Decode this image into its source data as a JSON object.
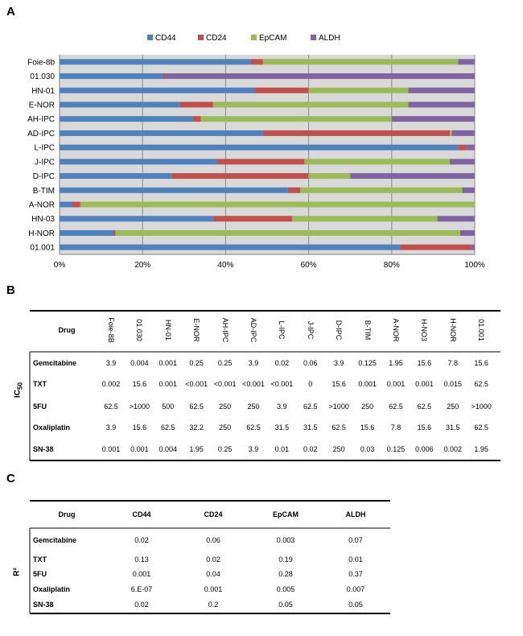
{
  "panels": {
    "a": "A",
    "b": "B",
    "c": "C"
  },
  "chart_data": {
    "type": "bar",
    "orientation": "horizontal",
    "stacked": "percent",
    "categories": [
      "Foie-8b",
      "01.030",
      "HN-01",
      "E-NOR",
      "AH-IPC",
      "AD-IPC",
      "L-IPC",
      "J-IPC",
      "D-IPC",
      "B-TIM",
      "A-NOR",
      "HN-03",
      "H-NOR",
      "01.001"
    ],
    "series": [
      {
        "name": "CD44",
        "color": "#4f81bd",
        "values": [
          46,
          25,
          47,
          29,
          32,
          49,
          96,
          38,
          27,
          55,
          3,
          37,
          13,
          82
        ]
      },
      {
        "name": "CD24",
        "color": "#c0504d",
        "values": [
          3,
          0.5,
          13,
          8,
          2,
          45,
          2,
          21,
          33,
          3,
          2,
          19,
          0.5,
          17
        ]
      },
      {
        "name": "EpCAM",
        "color": "#9bbb59",
        "values": [
          47,
          0,
          24,
          47,
          46,
          0.5,
          0,
          35,
          10,
          39,
          95,
          35,
          83,
          0
        ]
      },
      {
        "name": "ALDH",
        "color": "#8064a2",
        "values": [
          4,
          74.5,
          16,
          16,
          20,
          5.5,
          2,
          6,
          30,
          3,
          0,
          9,
          3.5,
          1
        ]
      }
    ],
    "xticks": [
      "0%",
      "20%",
      "40%",
      "60%",
      "80%",
      "100%"
    ],
    "xlim": [
      0,
      100
    ],
    "grid": "vertical",
    "legend": "top"
  },
  "table_b": {
    "drug_header": "Drug",
    "side_label": "IC50",
    "columns": [
      "Foie-8B",
      "01.030",
      "HN-01",
      "E-NOR",
      "AH-IPC",
      "AD-IPC",
      "L-IPC",
      "J-IPC",
      "D-IPC",
      "B-TIM",
      "A-NOR",
      "H-NO3",
      "H-NOR",
      "01.001"
    ],
    "rows": [
      {
        "drug": "Gemcitabine",
        "values": [
          "3.9",
          "0.004",
          "0.001",
          "0.25",
          "0.25",
          "3.9",
          "0.02",
          "0.06",
          "3.9",
          "0.125",
          "1.95",
          "15.6",
          "7.8",
          "15.6"
        ]
      },
      {
        "drug": "TXT",
        "values": [
          "0.002",
          "15.6",
          "0.001",
          "<0.001",
          "<0.001",
          "<0.001",
          "<0.001",
          "0",
          "15.6",
          "0.001",
          "0.001",
          "0.001",
          "0.015",
          "62.5"
        ]
      },
      {
        "drug": "5FU",
        "values": [
          "62.5",
          ">1000",
          "500",
          "62.5",
          "250",
          "250",
          "3.9",
          "62.5",
          ">1000",
          "250",
          "62.5",
          "62.5",
          "250",
          ">1000"
        ]
      },
      {
        "drug": "Oxaliplatin",
        "values": [
          "3.9",
          "15.6",
          "62.5",
          "32.2",
          "250",
          "62.5",
          "31.5",
          "31.5",
          "62.5",
          "15.6",
          "7.8",
          "15.6",
          "31.5",
          "62.5"
        ]
      },
      {
        "drug": "SN-38",
        "values": [
          "0.001",
          "0.001",
          "0.004",
          "1.95",
          "0.25",
          "3.9",
          "0.01",
          "0.02",
          "250",
          "0.03",
          "0.125",
          "0.006",
          "0.002",
          "1.95"
        ]
      }
    ]
  },
  "table_c": {
    "drug_header": "Drug",
    "side_label": "R²",
    "columns": [
      "CD44",
      "CD24",
      "EpCAM",
      "ALDH"
    ],
    "rows": [
      {
        "drug": "Gemcitabine",
        "values": [
          "0.02",
          "0.06",
          "0.003",
          "0.07"
        ]
      },
      {
        "drug": "TXT",
        "values": [
          "0.13",
          "0.02",
          "0.19",
          "0.01"
        ]
      },
      {
        "drug": "5FU",
        "values": [
          "0.001",
          "0.04",
          "0.28",
          "0.37"
        ]
      },
      {
        "drug": "Oxaliplatin",
        "values": [
          "6.E-07",
          "0.001",
          "0.005",
          "0.007"
        ]
      },
      {
        "drug": "SN-38",
        "values": [
          "0.02",
          "0.2",
          "0.05",
          "0.05"
        ]
      }
    ]
  }
}
